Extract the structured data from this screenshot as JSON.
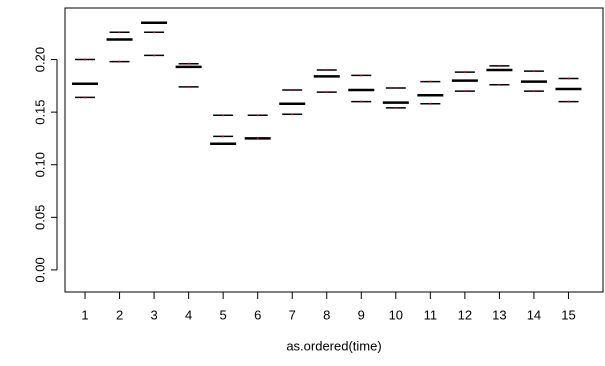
{
  "chart_data": {
    "type": "interval",
    "x_label": "as.ordered(time)",
    "categories": [
      "1",
      "2",
      "3",
      "4",
      "5",
      "6",
      "7",
      "8",
      "9",
      "10",
      "11",
      "12",
      "13",
      "14",
      "15"
    ],
    "series": [
      {
        "style": "thick",
        "color": "#000000",
        "values": [
          0.177,
          0.219,
          0.235,
          0.193,
          0.12,
          0.125,
          0.158,
          0.184,
          0.171,
          0.159,
          0.166,
          0.18,
          0.19,
          0.179,
          0.172
        ]
      },
      {
        "style": "thin",
        "color": "#000000",
        "values": [
          0.2,
          0.226,
          0.226,
          0.196,
          0.147,
          0.147,
          0.171,
          0.19,
          0.185,
          0.173,
          0.179,
          0.188,
          0.194,
          0.189,
          0.182
        ]
      },
      {
        "style": "thin",
        "color": "#000000",
        "values": [
          0.164,
          0.198,
          0.204,
          0.174,
          0.127,
          0.125,
          0.148,
          0.169,
          0.16,
          0.154,
          0.158,
          0.17,
          0.176,
          0.17,
          0.16
        ]
      }
    ],
    "marker_color": "#cc0000",
    "xlim": [
      0.42,
      16.0
    ],
    "ylim": [
      -0.021,
      0.249
    ],
    "yticks": [
      {
        "value": 0,
        "label": "0.00"
      },
      {
        "value": 0.05,
        "label": "0.05"
      },
      {
        "value": 0.1,
        "label": "0.10"
      },
      {
        "value": 0.15,
        "label": "0.15"
      },
      {
        "value": 0.2,
        "label": "0.20"
      }
    ]
  }
}
